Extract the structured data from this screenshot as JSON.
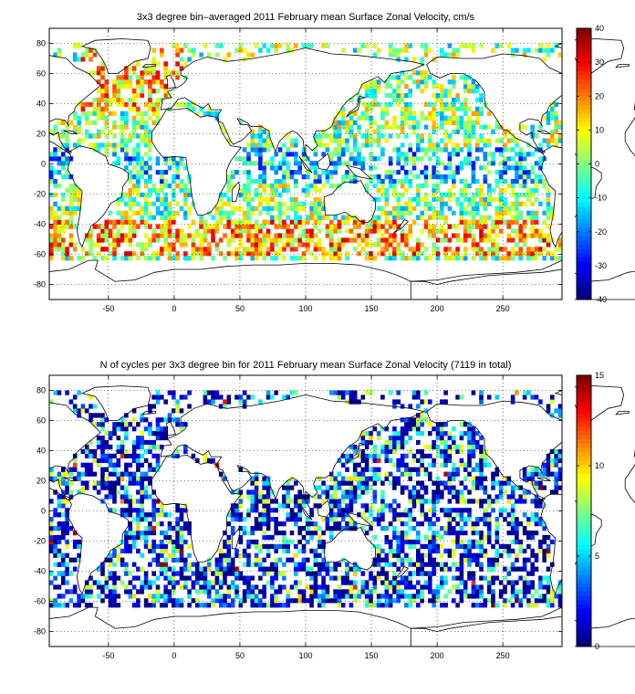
{
  "chart_data": [
    {
      "type": "heatmap",
      "title": "3x3 degree bin–averaged 2011 February mean Surface Zonal Velocity, cm/s",
      "xlabel": "",
      "ylabel": "",
      "xlim": [
        -95,
        295
      ],
      "ylim": [
        -90,
        90
      ],
      "x_ticks": [
        "-50",
        "0",
        "50",
        "100",
        "150",
        "200",
        "250"
      ],
      "y_ticks": [
        "80",
        "60",
        "40",
        "20",
        "0",
        "-20",
        "-40",
        "-60",
        "-80"
      ],
      "colorbar": {
        "min": -40,
        "max": 40,
        "ticks": [
          "40",
          "30",
          "20",
          "10",
          "0",
          "-10",
          "-20",
          "-30",
          "-40"
        ],
        "colormap": "jet"
      },
      "grid": true,
      "bin_size_deg": 3
    },
    {
      "type": "heatmap",
      "title": "N of cycles per 3x3 degree bin for 2011 February mean Surface Zonal Velocity (7119 in total)",
      "xlabel": "",
      "ylabel": "",
      "xlim": [
        -95,
        295
      ],
      "ylim": [
        -90,
        90
      ],
      "x_ticks": [
        "-50",
        "0",
        "50",
        "100",
        "150",
        "200",
        "250"
      ],
      "y_ticks": [
        "80",
        "60",
        "40",
        "20",
        "0",
        "-20",
        "-40",
        "-60",
        "-80"
      ],
      "colorbar": {
        "min": 0,
        "max": 15,
        "ticks": [
          "15",
          "10",
          "5",
          "0"
        ],
        "colormap": "jet"
      },
      "grid": true,
      "bin_size_deg": 3
    }
  ]
}
